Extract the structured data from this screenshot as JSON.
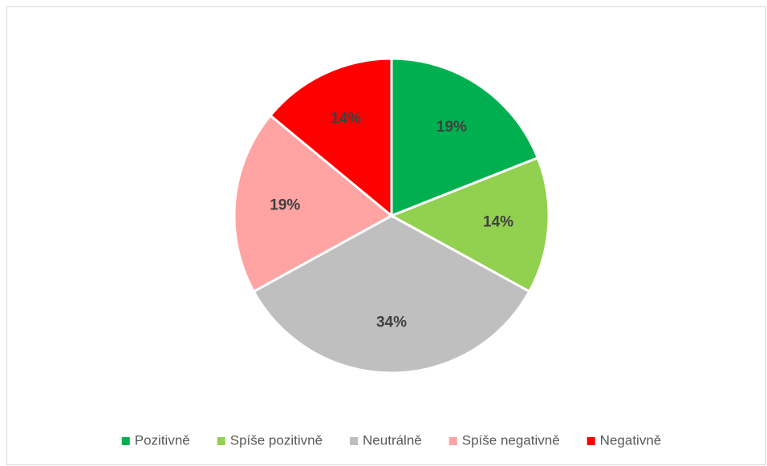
{
  "chart_data": {
    "type": "pie",
    "categories": [
      "Pozitivně",
      "Spíše pozitivně",
      "Neutrálně",
      "Spíše negativně",
      "Negativně"
    ],
    "values": [
      19,
      14,
      34,
      19,
      14
    ],
    "value_labels": [
      "19%",
      "14%",
      "34%",
      "19%",
      "14%"
    ],
    "colors": [
      "#00b050",
      "#92d050",
      "#bfbfbf",
      "#ffa3a3",
      "#ff0000"
    ],
    "legend": "bottom"
  }
}
